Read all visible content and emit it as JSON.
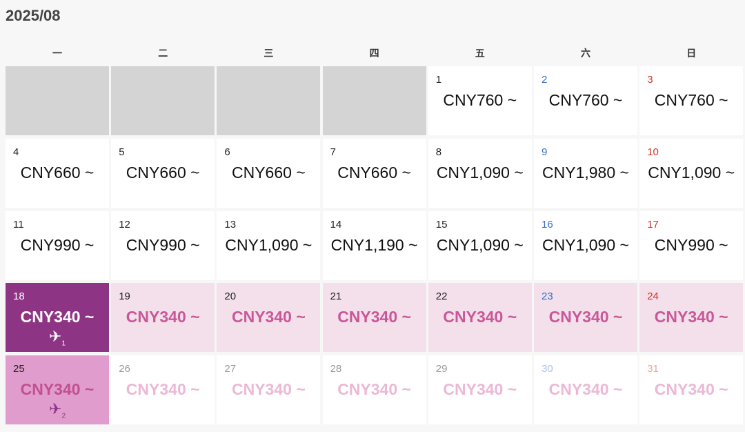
{
  "header": {
    "title": "2025/08"
  },
  "weekdays": [
    "一",
    "二",
    "三",
    "四",
    "五",
    "六",
    "日"
  ],
  "weeks": [
    [
      null,
      null,
      null,
      null,
      {
        "day": 1,
        "price": "CNY760 ~",
        "state": "available"
      },
      {
        "day": 2,
        "price": "CNY760 ~",
        "state": "available"
      },
      {
        "day": 3,
        "price": "CNY760 ~",
        "state": "available"
      }
    ],
    [
      {
        "day": 4,
        "price": "CNY660 ~",
        "state": "available"
      },
      {
        "day": 5,
        "price": "CNY660 ~",
        "state": "available"
      },
      {
        "day": 6,
        "price": "CNY660 ~",
        "state": "available"
      },
      {
        "day": 7,
        "price": "CNY660 ~",
        "state": "available"
      },
      {
        "day": 8,
        "price": "CNY1,090 ~",
        "state": "available"
      },
      {
        "day": 9,
        "price": "CNY1,980 ~",
        "state": "available"
      },
      {
        "day": 10,
        "price": "CNY1,090 ~",
        "state": "available"
      }
    ],
    [
      {
        "day": 11,
        "price": "CNY990 ~",
        "state": "available"
      },
      {
        "day": 12,
        "price": "CNY990 ~",
        "state": "available"
      },
      {
        "day": 13,
        "price": "CNY1,090 ~",
        "state": "available"
      },
      {
        "day": 14,
        "price": "CNY1,190 ~",
        "state": "available"
      },
      {
        "day": 15,
        "price": "CNY1,090 ~",
        "state": "available"
      },
      {
        "day": 16,
        "price": "CNY1,090 ~",
        "state": "available"
      },
      {
        "day": 17,
        "price": "CNY990 ~",
        "state": "available"
      }
    ],
    [
      {
        "day": 18,
        "price": "CNY340 ~",
        "state": "selected",
        "flight": 1
      },
      {
        "day": 19,
        "price": "CNY340 ~",
        "state": "range"
      },
      {
        "day": 20,
        "price": "CNY340 ~",
        "state": "range"
      },
      {
        "day": 21,
        "price": "CNY340 ~",
        "state": "range"
      },
      {
        "day": 22,
        "price": "CNY340 ~",
        "state": "range"
      },
      {
        "day": 23,
        "price": "CNY340 ~",
        "state": "range"
      },
      {
        "day": 24,
        "price": "CNY340 ~",
        "state": "range"
      }
    ],
    [
      {
        "day": 25,
        "price": "CNY340 ~",
        "state": "return",
        "flight": 2
      },
      {
        "day": 26,
        "price": "CNY340 ~",
        "state": "disabled"
      },
      {
        "day": 27,
        "price": "CNY340 ~",
        "state": "disabled"
      },
      {
        "day": 28,
        "price": "CNY340 ~",
        "state": "disabled"
      },
      {
        "day": 29,
        "price": "CNY340 ~",
        "state": "disabled"
      },
      {
        "day": 30,
        "price": "CNY340 ~",
        "state": "disabled"
      },
      {
        "day": 31,
        "price": "CNY340 ~",
        "state": "disabled"
      }
    ]
  ]
}
